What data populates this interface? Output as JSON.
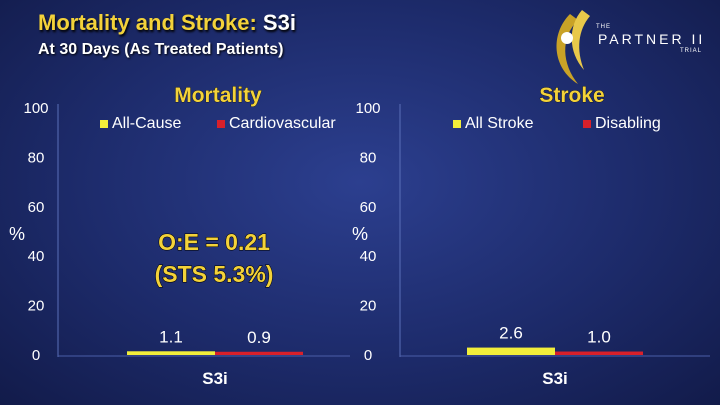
{
  "title": {
    "main": "Mortality and Stroke: ",
    "accent": "S3i"
  },
  "subtitle": "At 30 Days (As Treated Patients)",
  "logo": {
    "the": "THE",
    "name": "PARTNER II",
    "trial": "TRIAL"
  },
  "annotation": {
    "line1": "O:E = 0.21",
    "line2": "(STS 5.3%)"
  },
  "colors": {
    "series_yellow": "#f2ee3a",
    "series_red": "#d8202a",
    "title_gold": "#f3d23a"
  },
  "chart_data": [
    {
      "type": "bar",
      "title": "Mortality",
      "ylabel": "%",
      "xlabel": "",
      "ylim": [
        0,
        100
      ],
      "yticks": [
        "0",
        "20",
        "40",
        "60",
        "80",
        "100"
      ],
      "categories": [
        "S3i"
      ],
      "legend_position": "top",
      "series": [
        {
          "name": "All-Cause",
          "values": [
            1.1
          ],
          "labels": [
            "1.1"
          ],
          "color": "#f2ee3a"
        },
        {
          "name": "Cardiovascular",
          "values": [
            0.9
          ],
          "labels": [
            "0.9"
          ],
          "color": "#d8202a"
        }
      ]
    },
    {
      "type": "bar",
      "title": "Stroke",
      "ylabel": "%",
      "xlabel": "",
      "ylim": [
        0,
        100
      ],
      "yticks": [
        "0",
        "20",
        "40",
        "60",
        "80",
        "100"
      ],
      "categories": [
        "S3i"
      ],
      "legend_position": "top",
      "series": [
        {
          "name": "All Stroke",
          "values": [
            2.6
          ],
          "labels": [
            "2.6"
          ],
          "color": "#f2ee3a"
        },
        {
          "name": "Disabling",
          "values": [
            1.0
          ],
          "labels": [
            "1.0"
          ],
          "color": "#d8202a"
        }
      ]
    }
  ]
}
